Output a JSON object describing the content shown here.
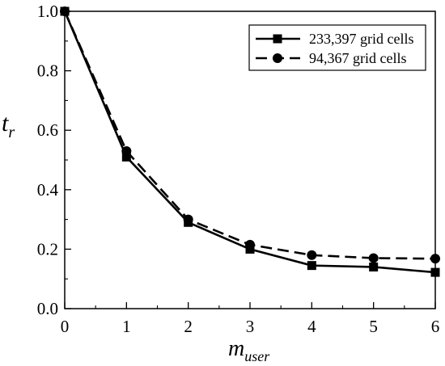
{
  "chart_data": {
    "type": "line",
    "x": [
      0,
      1,
      2,
      3,
      4,
      5,
      6
    ],
    "series": [
      {
        "name": "233,397 grid cells",
        "values": [
          1.0,
          0.51,
          0.29,
          0.2,
          0.145,
          0.14,
          0.122
        ],
        "line_style": "solid",
        "marker": "square",
        "color": "#000000"
      },
      {
        "name": "94,367 grid cells",
        "values": [
          1.0,
          0.53,
          0.3,
          0.215,
          0.18,
          0.17,
          0.168
        ],
        "line_style": "dashed",
        "marker": "circle",
        "color": "#000000"
      }
    ],
    "xlabel": {
      "main": "m",
      "subscript": "user"
    },
    "ylabel": {
      "main": "t",
      "subscript": "r"
    },
    "xlim": [
      0,
      6
    ],
    "ylim": [
      0.0,
      1.0
    ],
    "x_ticks": [
      "0",
      "1",
      "2",
      "3",
      "4",
      "5",
      "6"
    ],
    "y_ticks": [
      "0.0",
      "0.2",
      "0.4",
      "0.6",
      "0.8",
      "1.0"
    ],
    "grid": false,
    "legend_position": "top-right"
  }
}
